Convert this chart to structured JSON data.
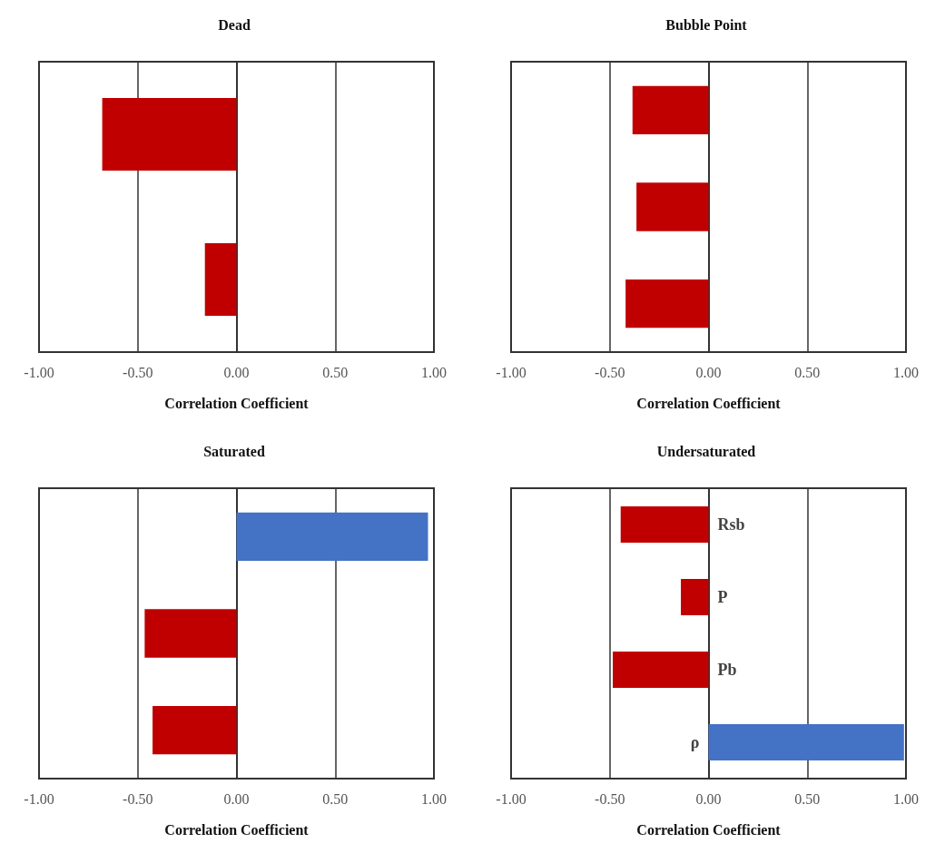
{
  "chart_data": [
    {
      "type": "bar",
      "orientation": "horizontal",
      "title": "Dead",
      "xlabel": "Correlation Coefficient",
      "categories": [
        null,
        null
      ],
      "values": [
        -0.68,
        -0.16
      ],
      "colors": [
        "#c00000",
        "#c00000"
      ],
      "xlim": [
        -1,
        1
      ],
      "xticks": [
        {
          "value": -1,
          "label": "-1.00"
        },
        {
          "value": -0.5,
          "label": "-0.50"
        },
        {
          "value": 0,
          "label": "0.00"
        },
        {
          "value": 0.5,
          "label": "0.50"
        },
        {
          "value": 1,
          "label": "1.00"
        }
      ],
      "grid": "x",
      "tick_labels": "x"
    },
    {
      "type": "bar",
      "orientation": "horizontal",
      "title": "Bubble Point",
      "xlabel": "Correlation Coefficient",
      "categories": [
        null,
        null,
        null
      ],
      "values": [
        -0.385,
        -0.365,
        -0.42
      ],
      "colors": [
        "#c00000",
        "#c00000",
        "#c00000"
      ],
      "xlim": [
        -1,
        1
      ],
      "xticks": [
        {
          "value": -1,
          "label": "-1.00"
        },
        {
          "value": -0.5,
          "label": "-0.50"
        },
        {
          "value": 0,
          "label": "0.00"
        },
        {
          "value": 0.5,
          "label": "0.50"
        },
        {
          "value": 1,
          "label": "1.00"
        }
      ],
      "grid": "x",
      "tick_labels": "x"
    },
    {
      "type": "bar",
      "orientation": "horizontal",
      "title": "Saturated",
      "xlabel": "Correlation Coefficient",
      "categories": [
        null,
        null,
        null
      ],
      "values": [
        0.97,
        -0.465,
        -0.425
      ],
      "colors": [
        "#4472c4",
        "#c00000",
        "#c00000"
      ],
      "xlim": [
        -1,
        1
      ],
      "xticks": [
        {
          "value": -1,
          "label": "-1.00"
        },
        {
          "value": -0.5,
          "label": "-0.50"
        },
        {
          "value": 0,
          "label": "0.00"
        },
        {
          "value": 0.5,
          "label": "0.50"
        },
        {
          "value": 1,
          "label": "1.00"
        }
      ],
      "grid": "x",
      "tick_labels": "x"
    },
    {
      "type": "bar",
      "orientation": "horizontal",
      "title": "Undersaturated",
      "xlabel": "Correlation Coefficient",
      "categories": [
        "Rsb",
        "P",
        "Pb",
        "ρ"
      ],
      "values": [
        -0.445,
        -0.14,
        -0.485,
        0.99
      ],
      "colors": [
        "#c00000",
        "#c00000",
        "#c00000",
        "#4472c4"
      ],
      "xlim": [
        -1,
        1
      ],
      "xticks": [
        {
          "value": -1,
          "label": "-1.00"
        },
        {
          "value": -0.5,
          "label": "-0.50"
        },
        {
          "value": 0,
          "label": "0.00"
        },
        {
          "value": 0.5,
          "label": "0.50"
        },
        {
          "value": 1,
          "label": "1.00"
        }
      ],
      "grid": "x",
      "tick_labels": "x"
    }
  ]
}
